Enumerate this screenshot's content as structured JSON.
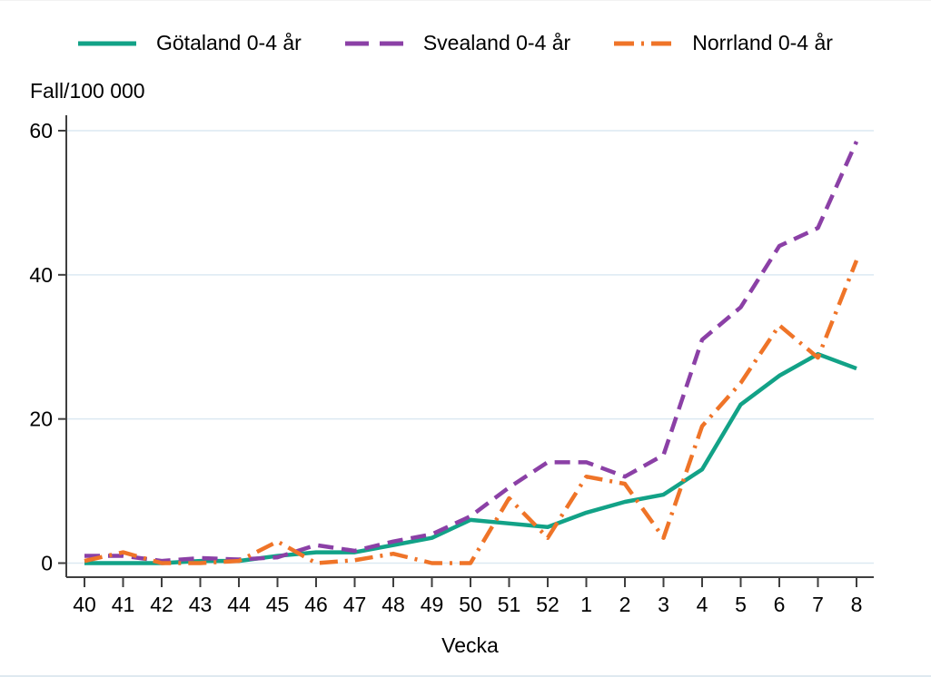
{
  "chart_data": {
    "type": "line",
    "xlabel": "Vecka",
    "ylabel": "Fall/100 000",
    "categories": [
      "40",
      "41",
      "42",
      "43",
      "44",
      "45",
      "46",
      "47",
      "48",
      "49",
      "50",
      "51",
      "52",
      "1",
      "2",
      "3",
      "4",
      "5",
      "6",
      "7",
      "8"
    ],
    "yticks": [
      "0",
      "20",
      "40",
      "60"
    ],
    "ytick_values": [
      0,
      20,
      40,
      60
    ],
    "ylim": [
      0,
      60
    ],
    "grid": "horizontal-light",
    "legend_position": "top",
    "axis_color": "#3f3f3f",
    "gridline_color": "#dce9f2",
    "series": [
      {
        "name": "Götaland 0-4 år",
        "color": "#12a287",
        "dash": "solid",
        "values": [
          0,
          0,
          0,
          0.3,
          0.3,
          1,
          1.5,
          1.5,
          2.5,
          3.5,
          6,
          5.5,
          5,
          7,
          8.5,
          9.5,
          13,
          22,
          26,
          29,
          27
        ]
      },
      {
        "name": "Svealand 0-4 år",
        "color": "#8b40a6",
        "dash": "dashed",
        "values": [
          1,
          1,
          0.3,
          0.7,
          0.5,
          0.8,
          2.5,
          1.7,
          3,
          4,
          6.5,
          10.5,
          14,
          14,
          12,
          15,
          31,
          35.5,
          44,
          46.5,
          58.5
        ]
      },
      {
        "name": "Norrland 0-4 år",
        "color": "#ef7428",
        "dash": "dash-dot",
        "values": [
          0.3,
          1.5,
          0,
          0,
          0.3,
          3,
          0,
          0.4,
          1.3,
          0,
          0,
          9,
          3.5,
          12,
          11,
          3.5,
          19,
          25,
          33,
          28.5,
          42
        ]
      }
    ]
  }
}
